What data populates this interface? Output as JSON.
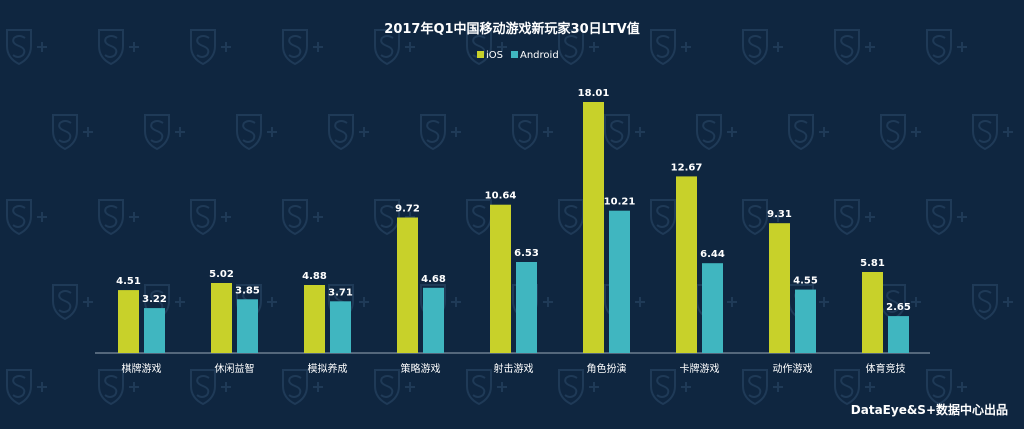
{
  "colors": {
    "background": "#0f2640",
    "ios": "#c8d12a",
    "android": "#40b6c0",
    "axis": "#9aa8b6",
    "text": "#ffffff"
  },
  "credit": "DataEye&S+数据中心出品",
  "chart_data": {
    "type": "bar",
    "title": "2017年Q1中国移动游戏新玩家30日LTV值",
    "xlabel": "",
    "ylabel": "",
    "ylim": [
      0,
      18.01
    ],
    "grid": false,
    "legend": "top-center",
    "categories": [
      "棋牌游戏",
      "休闲益智",
      "模拟养成",
      "策略游戏",
      "射击游戏",
      "角色扮演",
      "卡牌游戏",
      "动作游戏",
      "体育竞技"
    ],
    "series": [
      {
        "name": "iOS",
        "color": "#c8d12a",
        "values": [
          4.51,
          5.02,
          4.88,
          9.72,
          10.64,
          18.01,
          12.67,
          9.31,
          5.81
        ],
        "labels": [
          "4.51",
          "5.02",
          "4.88",
          "9.72",
          "10.64",
          "18.01",
          "12.67",
          "9.31",
          "5.81"
        ]
      },
      {
        "name": "Android",
        "color": "#40b6c0",
        "values": [
          3.22,
          3.85,
          3.71,
          4.68,
          6.53,
          10.21,
          6.44,
          4.55,
          2.65
        ],
        "labels": [
          "3.22",
          "3.85",
          "3.71",
          "4.68",
          "6.53",
          "10.21",
          "6.44",
          "4.55",
          "2.65"
        ]
      }
    ]
  }
}
